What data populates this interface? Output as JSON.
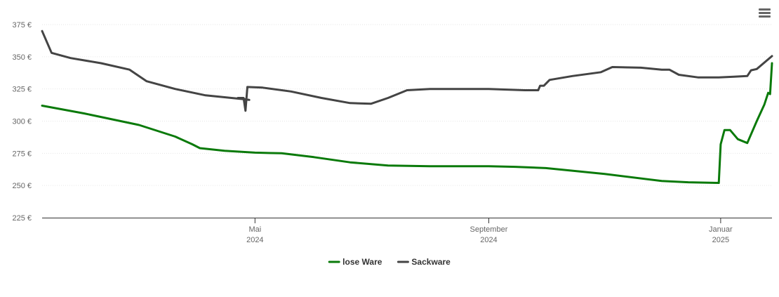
{
  "chart_data": {
    "type": "line",
    "y_axis": {
      "ylim": [
        225,
        375
      ],
      "ticks": [
        225,
        250,
        275,
        300,
        325,
        350,
        375
      ],
      "tick_labels": [
        "225 €",
        "250 €",
        "275 €",
        "300 €",
        "325 €",
        "350 €",
        "375 €"
      ],
      "grid": true
    },
    "x_axis": {
      "xlim": [
        "2024-01-10",
        "2025-01-28"
      ],
      "ticks": [
        {
          "date": "2024-05-01",
          "line1": "Mai",
          "line2": "2024"
        },
        {
          "date": "2024-09-01",
          "line1": "September",
          "line2": "2024"
        },
        {
          "date": "2025-01-01",
          "line1": "Januar",
          "line2": "2025"
        }
      ]
    },
    "legend_position": "bottom-center",
    "series": [
      {
        "name": "lose Ware",
        "color": "#0a7a0a",
        "points": [
          [
            "2024-01-10",
            312
          ],
          [
            "2024-02-01",
            306
          ],
          [
            "2024-03-01",
            297
          ],
          [
            "2024-03-20",
            288
          ],
          [
            "2024-03-29",
            282
          ],
          [
            "2024-04-02",
            279
          ],
          [
            "2024-04-15",
            277
          ],
          [
            "2024-05-01",
            275.5
          ],
          [
            "2024-05-15",
            275
          ],
          [
            "2024-06-01",
            272
          ],
          [
            "2024-06-20",
            268
          ],
          [
            "2024-07-10",
            265.5
          ],
          [
            "2024-08-01",
            265
          ],
          [
            "2024-09-01",
            265
          ],
          [
            "2024-09-15",
            264.5
          ],
          [
            "2024-10-01",
            263.5
          ],
          [
            "2024-11-01",
            259
          ],
          [
            "2024-12-01",
            253.5
          ],
          [
            "2024-12-15",
            252.5
          ],
          [
            "2024-12-31",
            252
          ],
          [
            "2025-01-01",
            282
          ],
          [
            "2025-01-03",
            293
          ],
          [
            "2025-01-06",
            293
          ],
          [
            "2025-01-10",
            286
          ],
          [
            "2025-01-15",
            283
          ],
          [
            "2025-01-20",
            300
          ],
          [
            "2025-01-24",
            313
          ],
          [
            "2025-01-26",
            322
          ],
          [
            "2025-01-27",
            321
          ],
          [
            "2025-01-28",
            345
          ]
        ]
      },
      {
        "name": "Sackware",
        "color": "#444444",
        "points": [
          [
            "2024-01-10",
            370
          ],
          [
            "2024-01-15",
            353
          ],
          [
            "2024-01-25",
            349
          ],
          [
            "2024-02-10",
            345
          ],
          [
            "2024-02-25",
            340
          ],
          [
            "2024-03-05",
            331
          ],
          [
            "2024-03-20",
            325
          ],
          [
            "2024-04-05",
            320
          ],
          [
            "2024-04-25",
            317
          ],
          [
            "2024-04-28",
            316.5
          ],
          [
            "2024-04-22",
            318
          ],
          [
            "2024-04-25",
            318
          ],
          [
            "2024-04-26",
            308
          ],
          [
            "2024-04-27",
            326.5
          ],
          [
            "2024-05-05",
            326
          ],
          [
            "2024-05-20",
            323
          ],
          [
            "2024-06-05",
            318
          ],
          [
            "2024-06-20",
            314
          ],
          [
            "2024-07-01",
            313.5
          ],
          [
            "2024-07-10",
            318
          ],
          [
            "2024-07-20",
            324
          ],
          [
            "2024-08-01",
            325
          ],
          [
            "2024-09-01",
            325
          ],
          [
            "2024-09-20",
            324
          ],
          [
            "2024-09-27",
            324
          ],
          [
            "2024-09-28",
            327.5
          ],
          [
            "2024-09-30",
            327.5
          ],
          [
            "2024-10-03",
            332
          ],
          [
            "2024-10-15",
            335
          ],
          [
            "2024-10-30",
            338
          ],
          [
            "2024-11-05",
            342
          ],
          [
            "2024-11-20",
            341.5
          ],
          [
            "2024-12-01",
            340
          ],
          [
            "2024-12-05",
            340
          ],
          [
            "2024-12-10",
            336
          ],
          [
            "2024-12-20",
            334
          ],
          [
            "2024-12-31",
            334
          ],
          [
            "2025-01-08",
            334.5
          ],
          [
            "2025-01-15",
            335
          ],
          [
            "2025-01-17",
            339.5
          ],
          [
            "2025-01-20",
            340.5
          ],
          [
            "2025-01-28",
            350.5
          ]
        ]
      }
    ]
  }
}
